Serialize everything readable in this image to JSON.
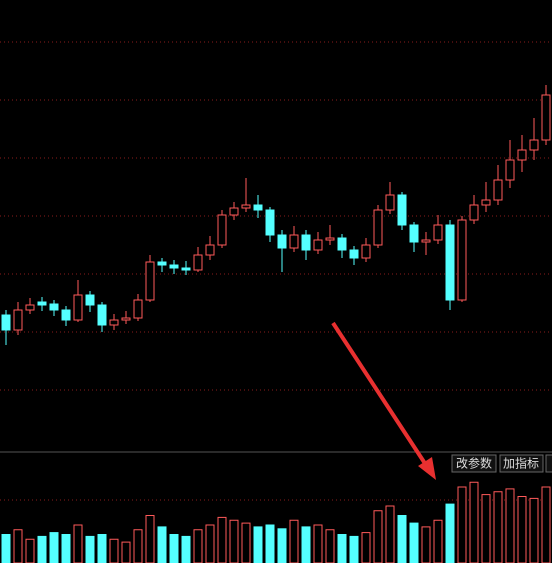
{
  "chart_data": [
    {
      "type": "candlestick",
      "up_color": "#ff5a5a",
      "down_color": "#54ffff",
      "ylim": [
        0,
        45
      ],
      "open": [
        13.5,
        12.0,
        14.0,
        14.8,
        14.6,
        14.0,
        13.0,
        15.5,
        14.5,
        12.5,
        13.0,
        13.2,
        15.0,
        18.8,
        18.5,
        18.2,
        18.0,
        19.5,
        20.5,
        23.5,
        24.2,
        24.5,
        24.0,
        21.5,
        20.2,
        21.5,
        20.0,
        21.0,
        21.2,
        20.0,
        19.2,
        20.5,
        24.0,
        25.5,
        22.5,
        20.8,
        21.0,
        22.5,
        15.0,
        23.0,
        24.5,
        25.0,
        27.0,
        29.0,
        30.0,
        31.0,
        35.5
      ],
      "high": [
        14.0,
        14.8,
        15.2,
        15.3,
        15.0,
        14.4,
        17.0,
        15.9,
        14.8,
        13.6,
        13.9,
        15.6,
        19.5,
        19.2,
        19.0,
        18.9,
        20.3,
        21.4,
        24.0,
        24.8,
        27.2,
        25.5,
        24.3,
        22.0,
        22.4,
        22.0,
        21.8,
        22.5,
        21.6,
        20.4,
        21.2,
        24.5,
        26.8,
        25.8,
        22.8,
        21.8,
        23.5,
        23.0,
        23.4,
        25.5,
        26.8,
        28.5,
        31.0,
        31.5,
        33.2,
        36.5,
        45.0
      ],
      "low": [
        10.5,
        11.5,
        13.6,
        13.9,
        13.4,
        12.4,
        12.8,
        13.8,
        11.8,
        12.0,
        12.6,
        12.9,
        14.8,
        17.8,
        17.6,
        17.5,
        17.8,
        19.0,
        20.2,
        23.0,
        23.8,
        23.2,
        20.8,
        17.8,
        19.8,
        19.0,
        19.6,
        20.5,
        19.2,
        18.5,
        18.8,
        20.2,
        23.6,
        22.0,
        19.8,
        19.5,
        20.6,
        14.0,
        14.8,
        22.6,
        23.8,
        24.5,
        26.2,
        27.8,
        29.0,
        30.5,
        34.8
      ],
      "close": [
        12.0,
        14.0,
        14.5,
        14.5,
        14.0,
        13.0,
        15.5,
        14.5,
        12.5,
        13.0,
        13.2,
        15.0,
        18.8,
        18.5,
        18.2,
        18.0,
        19.5,
        20.5,
        23.5,
        24.2,
        24.5,
        24.0,
        21.5,
        20.2,
        21.5,
        20.0,
        21.0,
        21.2,
        20.0,
        19.2,
        20.5,
        24.0,
        25.5,
        22.5,
        20.8,
        21.0,
        22.5,
        15.0,
        23.0,
        24.5,
        25.0,
        27.0,
        29.0,
        30.0,
        31.0,
        35.5,
        41.0
      ]
    },
    {
      "type": "volume",
      "ylim": [
        0,
        100
      ],
      "values": [
        30,
        35,
        25,
        28,
        32,
        30,
        40,
        28,
        30,
        25,
        22,
        35,
        50,
        38,
        30,
        28,
        35,
        40,
        48,
        45,
        42,
        38,
        40,
        36,
        45,
        38,
        40,
        35,
        30,
        28,
        32,
        55,
        60,
        50,
        42,
        38,
        45,
        62,
        80,
        85,
        72,
        75,
        78,
        70,
        68,
        80,
        90
      ]
    }
  ],
  "buttons": [
    "改参数",
    "加指标"
  ]
}
